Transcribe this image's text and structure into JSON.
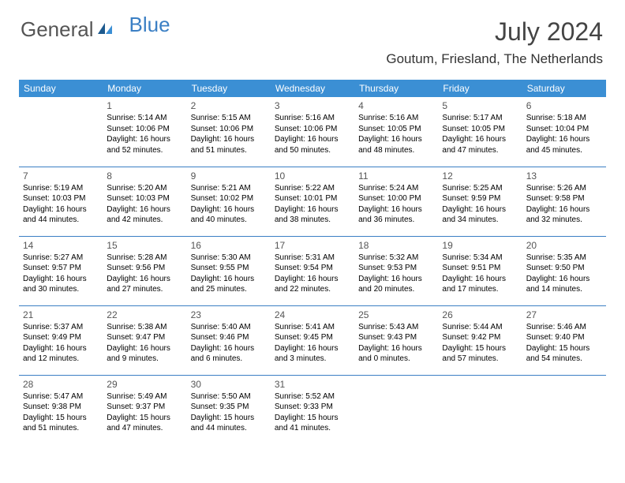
{
  "logo": {
    "text1": "General",
    "text2": "Blue"
  },
  "title": "July 2024",
  "location": "Goutum, Friesland, The Netherlands",
  "colors": {
    "header_bg": "#3b8fd4",
    "header_text": "#ffffff",
    "border": "#3b7fc4",
    "logo_gray": "#555555",
    "logo_blue": "#3b7fc4"
  },
  "weekdays": [
    "Sunday",
    "Monday",
    "Tuesday",
    "Wednesday",
    "Thursday",
    "Friday",
    "Saturday"
  ],
  "weeks": [
    [
      null,
      {
        "n": "1",
        "sr": "5:14 AM",
        "ss": "10:06 PM",
        "dl": "16 hours and 52 minutes."
      },
      {
        "n": "2",
        "sr": "5:15 AM",
        "ss": "10:06 PM",
        "dl": "16 hours and 51 minutes."
      },
      {
        "n": "3",
        "sr": "5:16 AM",
        "ss": "10:06 PM",
        "dl": "16 hours and 50 minutes."
      },
      {
        "n": "4",
        "sr": "5:16 AM",
        "ss": "10:05 PM",
        "dl": "16 hours and 48 minutes."
      },
      {
        "n": "5",
        "sr": "5:17 AM",
        "ss": "10:05 PM",
        "dl": "16 hours and 47 minutes."
      },
      {
        "n": "6",
        "sr": "5:18 AM",
        "ss": "10:04 PM",
        "dl": "16 hours and 45 minutes."
      }
    ],
    [
      {
        "n": "7",
        "sr": "5:19 AM",
        "ss": "10:03 PM",
        "dl": "16 hours and 44 minutes."
      },
      {
        "n": "8",
        "sr": "5:20 AM",
        "ss": "10:03 PM",
        "dl": "16 hours and 42 minutes."
      },
      {
        "n": "9",
        "sr": "5:21 AM",
        "ss": "10:02 PM",
        "dl": "16 hours and 40 minutes."
      },
      {
        "n": "10",
        "sr": "5:22 AM",
        "ss": "10:01 PM",
        "dl": "16 hours and 38 minutes."
      },
      {
        "n": "11",
        "sr": "5:24 AM",
        "ss": "10:00 PM",
        "dl": "16 hours and 36 minutes."
      },
      {
        "n": "12",
        "sr": "5:25 AM",
        "ss": "9:59 PM",
        "dl": "16 hours and 34 minutes."
      },
      {
        "n": "13",
        "sr": "5:26 AM",
        "ss": "9:58 PM",
        "dl": "16 hours and 32 minutes."
      }
    ],
    [
      {
        "n": "14",
        "sr": "5:27 AM",
        "ss": "9:57 PM",
        "dl": "16 hours and 30 minutes."
      },
      {
        "n": "15",
        "sr": "5:28 AM",
        "ss": "9:56 PM",
        "dl": "16 hours and 27 minutes."
      },
      {
        "n": "16",
        "sr": "5:30 AM",
        "ss": "9:55 PM",
        "dl": "16 hours and 25 minutes."
      },
      {
        "n": "17",
        "sr": "5:31 AM",
        "ss": "9:54 PM",
        "dl": "16 hours and 22 minutes."
      },
      {
        "n": "18",
        "sr": "5:32 AM",
        "ss": "9:53 PM",
        "dl": "16 hours and 20 minutes."
      },
      {
        "n": "19",
        "sr": "5:34 AM",
        "ss": "9:51 PM",
        "dl": "16 hours and 17 minutes."
      },
      {
        "n": "20",
        "sr": "5:35 AM",
        "ss": "9:50 PM",
        "dl": "16 hours and 14 minutes."
      }
    ],
    [
      {
        "n": "21",
        "sr": "5:37 AM",
        "ss": "9:49 PM",
        "dl": "16 hours and 12 minutes."
      },
      {
        "n": "22",
        "sr": "5:38 AM",
        "ss": "9:47 PM",
        "dl": "16 hours and 9 minutes."
      },
      {
        "n": "23",
        "sr": "5:40 AM",
        "ss": "9:46 PM",
        "dl": "16 hours and 6 minutes."
      },
      {
        "n": "24",
        "sr": "5:41 AM",
        "ss": "9:45 PM",
        "dl": "16 hours and 3 minutes."
      },
      {
        "n": "25",
        "sr": "5:43 AM",
        "ss": "9:43 PM",
        "dl": "16 hours and 0 minutes."
      },
      {
        "n": "26",
        "sr": "5:44 AM",
        "ss": "9:42 PM",
        "dl": "15 hours and 57 minutes."
      },
      {
        "n": "27",
        "sr": "5:46 AM",
        "ss": "9:40 PM",
        "dl": "15 hours and 54 minutes."
      }
    ],
    [
      {
        "n": "28",
        "sr": "5:47 AM",
        "ss": "9:38 PM",
        "dl": "15 hours and 51 minutes."
      },
      {
        "n": "29",
        "sr": "5:49 AM",
        "ss": "9:37 PM",
        "dl": "15 hours and 47 minutes."
      },
      {
        "n": "30",
        "sr": "5:50 AM",
        "ss": "9:35 PM",
        "dl": "15 hours and 44 minutes."
      },
      {
        "n": "31",
        "sr": "5:52 AM",
        "ss": "9:33 PM",
        "dl": "15 hours and 41 minutes."
      },
      null,
      null,
      null
    ]
  ],
  "labels": {
    "sunrise": "Sunrise: ",
    "sunset": "Sunset: ",
    "daylight": "Daylight: "
  }
}
